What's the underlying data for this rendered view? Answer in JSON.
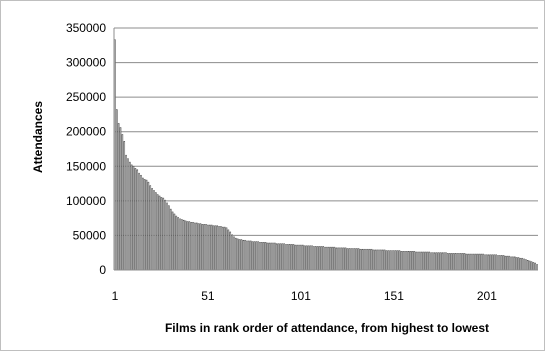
{
  "chart_data": {
    "type": "bar",
    "title": "",
    "xlabel": "Films in rank order of  attendance, from highest to lowest",
    "ylabel": "Attendances",
    "ylim": [
      0,
      350000
    ],
    "yticks": [
      0,
      50000,
      100000,
      150000,
      200000,
      250000,
      300000,
      350000
    ],
    "ytick_labels": [
      "0",
      "50000",
      "100000",
      "150000",
      "200000",
      "250000",
      "300000",
      "350000"
    ],
    "xlim": [
      0.5,
      228.5
    ],
    "xticks": [
      1,
      51,
      101,
      151,
      201
    ],
    "xtick_labels": [
      "1",
      "51",
      "101",
      "151",
      "201"
    ],
    "grid": "horizontal",
    "legend": "none",
    "bar_color": "#ffffff",
    "bar_edge_color": "#555555",
    "series": [
      {
        "values": [
          333000,
          232000,
          212000,
          206000,
          196000,
          186000,
          166000,
          161000,
          156000,
          152000,
          150000,
          147000,
          145000,
          140000,
          137000,
          133000,
          131000,
          130000,
          127000,
          122000,
          118000,
          115000,
          112000,
          109000,
          107000,
          105000,
          104000,
          101000,
          97000,
          93000,
          88000,
          84000,
          81000,
          78000,
          76000,
          74000,
          73000,
          72000,
          71000,
          70000,
          70000,
          69000,
          69000,
          68000,
          68000,
          67000,
          67000,
          66000,
          66000,
          66000,
          65000,
          65000,
          65000,
          64000,
          64000,
          64000,
          63000,
          63000,
          62000,
          62000,
          61000,
          58000,
          55000,
          51000,
          48000,
          46000,
          45000,
          44000,
          44000,
          43000,
          43000,
          42000,
          42000,
          42000,
          41000,
          41000,
          41000,
          41000,
          40000,
          40000,
          40000,
          40000,
          39000,
          39000,
          39000,
          39000,
          39000,
          38000,
          38000,
          38000,
          38000,
          38000,
          37000,
          37000,
          37000,
          37000,
          37000,
          36000,
          36000,
          36000,
          36000,
          36000,
          35000,
          35000,
          35000,
          35000,
          35000,
          34000,
          34000,
          34000,
          34000,
          34000,
          34000,
          33000,
          33000,
          33000,
          33000,
          33000,
          33000,
          32000,
          32000,
          32000,
          32000,
          32000,
          32000,
          31000,
          31000,
          31000,
          31000,
          31000,
          31000,
          31000,
          30000,
          30000,
          30000,
          30000,
          30000,
          30000,
          30000,
          29000,
          29000,
          29000,
          29000,
          29000,
          29000,
          29000,
          28000,
          28000,
          28000,
          28000,
          28000,
          28000,
          28000,
          28000,
          27000,
          27000,
          27000,
          27000,
          27000,
          27000,
          27000,
          27000,
          26000,
          26000,
          26000,
          26000,
          26000,
          26000,
          26000,
          26000,
          25000,
          25000,
          25000,
          25000,
          25000,
          25000,
          25000,
          25000,
          25000,
          24000,
          24000,
          24000,
          24000,
          24000,
          24000,
          24000,
          24000,
          24000,
          24000,
          23000,
          23000,
          23000,
          23000,
          23000,
          23000,
          23000,
          23000,
          23000,
          23000,
          22000,
          22000,
          22000,
          22000,
          22000,
          22000,
          22000,
          21000,
          21000,
          21000,
          21000,
          20000,
          20000,
          20000,
          19000,
          19000,
          19000,
          18000,
          18000,
          17000,
          17000,
          16000,
          15000,
          14000,
          13000,
          12000,
          11000,
          10000,
          8000
        ]
      }
    ]
  }
}
